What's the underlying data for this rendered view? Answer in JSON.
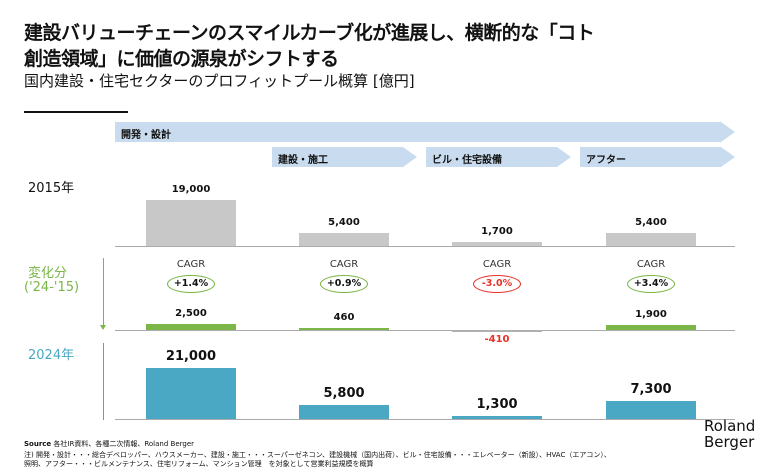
{
  "title_line1": "建設バリューチェーンのスマイルカーブ化が進展し、横断的な「コト",
  "title_line2": "創造領域」に価値の源泉がシフトする",
  "subtitle": "国内建設・住宅セクターのプロフィットプール概算 [億円]",
  "stages": {
    "top": "開発・設計",
    "sub": [
      "建設・施工",
      "ビル・住宅設備",
      "アフター"
    ]
  },
  "row_labels": {
    "y2015": "2015年",
    "change": "変化分",
    "change_period": "('24-'15)",
    "y2024": "2024年"
  },
  "colors": {
    "y2015": "#c8c8c8",
    "change_positive": "#7ab648",
    "change_negative": "#e8312a",
    "y2024": "#4aa8c4",
    "arrow": "#c9dcef"
  },
  "chart_data": {
    "type": "bar",
    "categories": [
      "開発・設計",
      "建設・施工",
      "ビル・住宅設備",
      "アフター"
    ],
    "series": [
      {
        "name": "2015年",
        "values": [
          19000,
          5400,
          1700,
          5400
        ],
        "labels": [
          "19,000",
          "5,400",
          "1,700",
          "5,400"
        ]
      },
      {
        "name": "変化分",
        "values": [
          2500,
          460,
          -410,
          1900
        ],
        "labels": [
          "2,500",
          "460",
          "-410",
          "1,900"
        ]
      },
      {
        "name": "2024年",
        "values": [
          21000,
          5800,
          1300,
          7300
        ],
        "labels": [
          "21,000",
          "5,800",
          "1,300",
          "7,300"
        ]
      }
    ],
    "cagr": {
      "label": "CAGR",
      "values": [
        "+1.4%",
        "+0.9%",
        "-3.0%",
        "+3.4%"
      ]
    }
  },
  "logo": {
    "line1": "Roland",
    "line2": "Berger"
  },
  "footer": {
    "source_label": "Source",
    "source": " 各社IR資料、各種二次情報、Roland Berger",
    "note1": "注) 開発・設計・・・総合デベロッパー、ハウスメーカー、建設・施工・・・スーパーゼネコン、建設機械（国内出荷）、ビル・住宅設備・・・エレベーター（新設）、HVAC（エアコン）、",
    "note2": "照明、アフター・・・ビルメンテナンス、住宅リフォーム、マンション管理　を対象として営業利益規模を概算"
  }
}
